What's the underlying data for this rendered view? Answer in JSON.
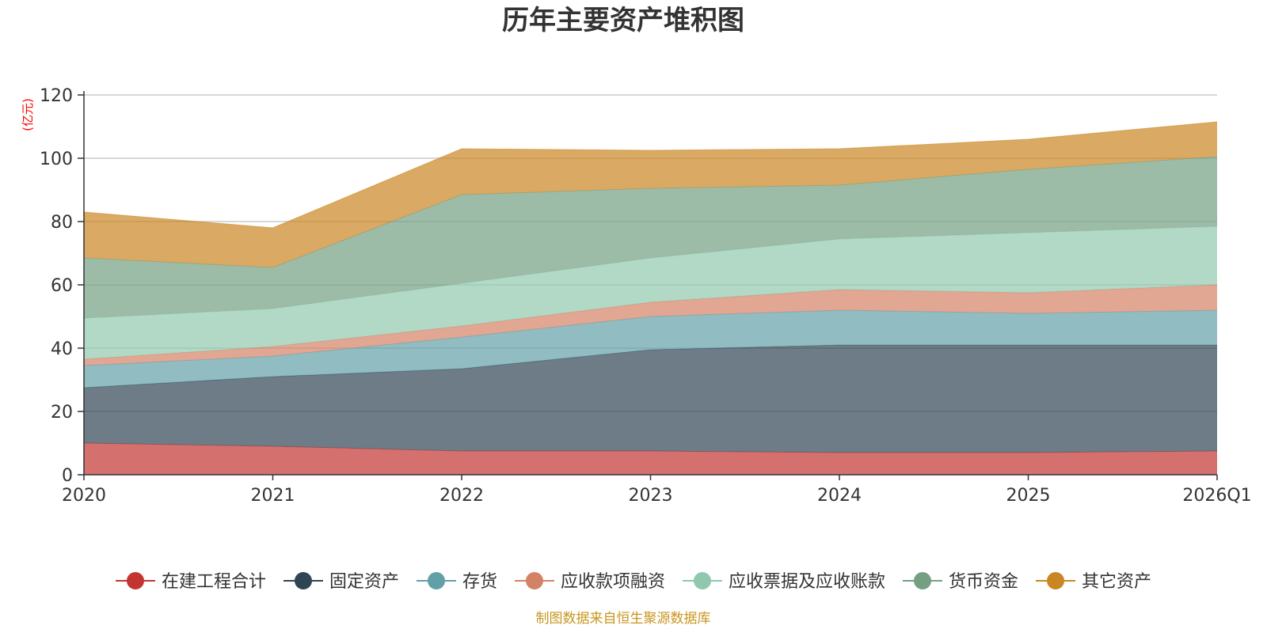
{
  "chart_data": {
    "type": "area",
    "stacked": true,
    "title": "历年主要资产堆积图",
    "ylabel": "(亿元)",
    "ylim": [
      0,
      120
    ],
    "yticks": [
      0,
      20,
      40,
      60,
      80,
      100,
      120
    ],
    "grid": true,
    "legend_position": "bottom",
    "categories": [
      "2020",
      "2021",
      "2022",
      "2023",
      "2024",
      "2025",
      "2026Q1"
    ],
    "series": [
      {
        "name": "在建工程合计",
        "color": "#c23531",
        "values": [
          10.0,
          9.0,
          7.5,
          7.5,
          7.0,
          7.0,
          7.5
        ]
      },
      {
        "name": "固定资产",
        "color": "#2f4554",
        "values": [
          17.5,
          22.0,
          26.0,
          32.0,
          34.0,
          34.0,
          33.5
        ]
      },
      {
        "name": "存货",
        "color": "#61a0a8",
        "values": [
          7.0,
          6.5,
          10.0,
          10.5,
          11.0,
          10.0,
          11.0
        ]
      },
      {
        "name": "应收款项融资",
        "color": "#d48265",
        "values": [
          2.0,
          3.0,
          3.5,
          4.5,
          6.5,
          6.5,
          8.0
        ]
      },
      {
        "name": "应收票据及应收账款",
        "color": "#91c7ae",
        "values": [
          13.0,
          12.0,
          13.5,
          14.0,
          16.0,
          19.0,
          18.5
        ]
      },
      {
        "name": "货币资金",
        "color": "#749f83",
        "values": [
          19.0,
          13.0,
          28.0,
          22.0,
          17.0,
          20.0,
          22.0
        ]
      },
      {
        "name": "其它资产",
        "color": "#ca8622",
        "values": [
          14.5,
          12.5,
          14.5,
          12.0,
          11.5,
          9.5,
          11.0
        ]
      }
    ]
  },
  "footer": {
    "source": "制图数据来自恒生聚源数据库"
  }
}
